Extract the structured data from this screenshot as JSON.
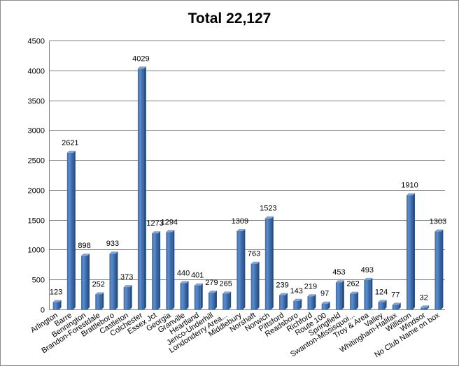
{
  "chart_data": {
    "type": "bar",
    "title": "Total 22,127",
    "xlabel": "",
    "ylabel": "",
    "ylim": [
      0,
      4500
    ],
    "yticks": [
      0,
      500,
      1000,
      1500,
      2000,
      2500,
      3000,
      3500,
      4000,
      4500
    ],
    "grid": true,
    "legend": "none",
    "bar_color": "#4f81bd",
    "categories": [
      "Arlington",
      "Barre",
      "Bennington",
      "Brandon-Forestdale",
      "Brattleboro",
      "Castleton",
      "Colchester",
      "Essex Jct",
      "Georgia",
      "Granville",
      "Heartland",
      "Jerico-Underhill",
      "Londonderry Area...",
      "Middlebury",
      "Norshaft",
      "Norwich",
      "Pittsford",
      "Readsboro",
      "Richford",
      "Route 100",
      "Springfield",
      "Swanton-Missisquoi...",
      "Troy & Area",
      "Valley",
      "Whitingham-Halifax",
      "Williston",
      "Windsor",
      "No Club Name on box"
    ],
    "values": [
      123,
      2621,
      898,
      252,
      933,
      373,
      4029,
      1273,
      1294,
      440,
      401,
      279,
      265,
      1309,
      763,
      1523,
      239,
      143,
      219,
      97,
      453,
      262,
      493,
      124,
      77,
      1910,
      32,
      1303
    ]
  }
}
